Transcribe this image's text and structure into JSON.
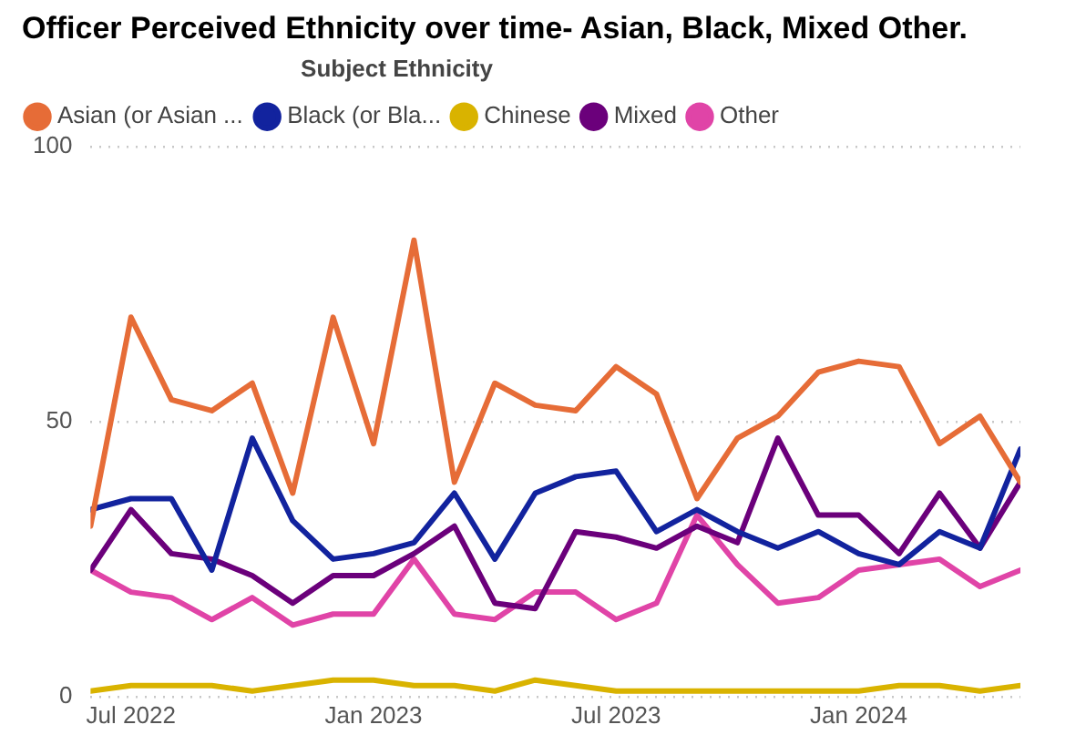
{
  "chart_data": {
    "type": "line",
    "title": "Officer Perceived Ethnicity over time- Asian, Black, Mixed Other.",
    "legend_title": "Subject Ethnicity",
    "legend": "top left",
    "grid": "y",
    "marker": "none",
    "line_style": "solid",
    "x": [
      "2022-06",
      "2022-07",
      "2022-08",
      "2022-09",
      "2022-10",
      "2022-11",
      "2022-12",
      "2023-01",
      "2023-02",
      "2023-03",
      "2023-04",
      "2023-05",
      "2023-06",
      "2023-07",
      "2023-08",
      "2023-09",
      "2023-10",
      "2023-11",
      "2023-12",
      "2024-01",
      "2024-02",
      "2024-03",
      "2024-04",
      "2024-05"
    ],
    "xlim": [
      "2022-06",
      "2024-05"
    ],
    "xticks": [
      {
        "value": "2022-07",
        "label": "Jul 2022"
      },
      {
        "value": "2023-01",
        "label": "Jan 2023"
      },
      {
        "value": "2023-07",
        "label": "Jul 2023"
      },
      {
        "value": "2024-01",
        "label": "Jan 2024"
      }
    ],
    "ylim": [
      0,
      100
    ],
    "yticks": [
      0,
      50,
      100
    ],
    "series": [
      {
        "name": "Asian (or Asian ...",
        "color": "#e66c37",
        "values": [
          31,
          69,
          54,
          52,
          57,
          37,
          69,
          46,
          83,
          39,
          57,
          53,
          52,
          60,
          55,
          36,
          47,
          51,
          59,
          61,
          60,
          46,
          51,
          39
        ]
      },
      {
        "name": "Black (or Bla...",
        "color": "#12239e",
        "values": [
          34,
          36,
          36,
          23,
          47,
          32,
          25,
          26,
          28,
          37,
          25,
          37,
          40,
          41,
          30,
          34,
          30,
          27,
          30,
          26,
          24,
          30,
          27,
          45
        ]
      },
      {
        "name": "Chinese",
        "color": "#d9b300",
        "values": [
          1,
          2,
          2,
          2,
          1,
          2,
          3,
          3,
          2,
          2,
          1,
          3,
          2,
          1,
          1,
          1,
          1,
          1,
          1,
          1,
          2,
          2,
          1,
          2
        ]
      },
      {
        "name": "Mixed",
        "color": "#6b007b",
        "values": [
          23,
          34,
          26,
          25,
          22,
          17,
          22,
          22,
          26,
          31,
          17,
          16,
          30,
          29,
          27,
          31,
          28,
          47,
          33,
          33,
          26,
          37,
          27,
          39
        ]
      },
      {
        "name": "Other",
        "color": "#e044a7",
        "values": [
          23,
          19,
          18,
          14,
          18,
          13,
          15,
          15,
          25,
          15,
          14,
          19,
          19,
          14,
          17,
          33,
          24,
          17,
          18,
          23,
          24,
          25,
          20,
          23
        ]
      }
    ]
  }
}
